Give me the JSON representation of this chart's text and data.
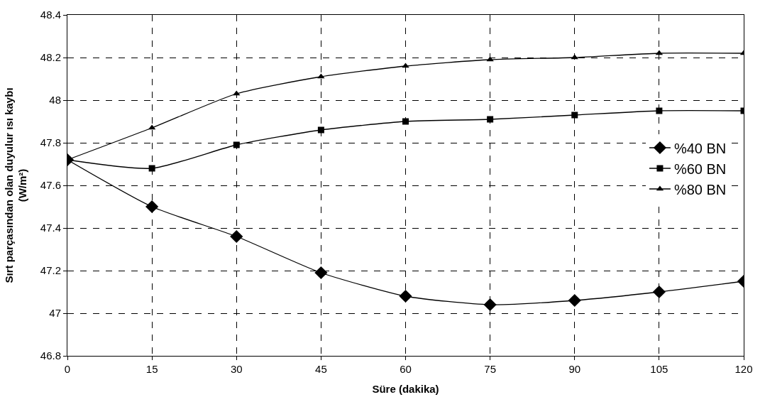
{
  "chart_data": {
    "type": "line",
    "xlabel": "Süre (dakika)",
    "ylabel": "Sırt parçasından olan duyulur ısı kaybı\n(W/m²)",
    "x": [
      0,
      15,
      30,
      45,
      60,
      75,
      90,
      105,
      120
    ],
    "xlim": [
      0,
      120
    ],
    "xticks": [
      0,
      15,
      30,
      45,
      60,
      75,
      90,
      105,
      120
    ],
    "ylim": [
      46.8,
      48.4
    ],
    "yticks": [
      46.8,
      47,
      47.2,
      47.4,
      47.6,
      47.8,
      48,
      48.2,
      48.4
    ],
    "grid": true,
    "legend": "right",
    "line_style": "solid",
    "series": [
      {
        "name": "%40 BN",
        "color": "#000000",
        "marker": "diamond",
        "values": [
          47.72,
          47.5,
          47.36,
          47.19,
          47.08,
          47.04,
          47.06,
          47.1,
          47.15
        ]
      },
      {
        "name": "%60 BN",
        "color": "#000000",
        "marker": "square",
        "values": [
          47.72,
          47.68,
          47.79,
          47.86,
          47.9,
          47.91,
          47.93,
          47.95,
          47.95
        ]
      },
      {
        "name": "%80 BN",
        "color": "#000000",
        "marker": "triangle",
        "values": [
          47.72,
          47.87,
          48.03,
          48.11,
          48.16,
          48.19,
          48.2,
          48.22,
          48.22
        ]
      }
    ]
  }
}
